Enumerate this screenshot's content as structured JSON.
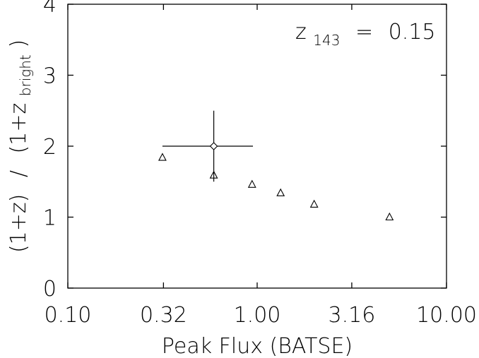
{
  "chart_data": {
    "type": "scatter",
    "title": "",
    "xlabel": "Peak Flux (BATSE)",
    "ylabel_parts": {
      "numerator": "(1+z)",
      "separator": "/",
      "denominator_prefix": "(1+z",
      "denominator_subscript": "bright",
      "denominator_suffix": ")"
    },
    "x_scale": "log10",
    "xlim": [
      0.1,
      10.0
    ],
    "ylim": [
      0,
      4
    ],
    "x_ticks": [
      0.1,
      0.32,
      1.0,
      3.16,
      10.0
    ],
    "x_tick_labels": [
      "0.10",
      "0.32",
      "1.00",
      "3.16",
      "10.00"
    ],
    "y_ticks": [
      0,
      1,
      2,
      3,
      4
    ],
    "y_tick_labels": [
      "0",
      "1",
      "2",
      "3",
      "4"
    ],
    "grid": false,
    "annotation": {
      "prefix": "z",
      "subscript": "143",
      "relation": "=",
      "value": "0.15"
    },
    "series": [
      {
        "marker": "triangle",
        "points": [
          {
            "x": 0.316,
            "y": 1.84
          },
          {
            "x": 0.59,
            "y": 1.59
          },
          {
            "x": 0.94,
            "y": 1.46
          },
          {
            "x": 1.33,
            "y": 1.34
          },
          {
            "x": 2.0,
            "y": 1.18
          },
          {
            "x": 5.0,
            "y": 1.0
          }
        ]
      },
      {
        "marker": "diamond",
        "points": [
          {
            "x": 0.59,
            "y": 2.0,
            "x_err": [
              0.316,
              0.95
            ],
            "y_err": [
              1.5,
              2.5
            ]
          }
        ]
      }
    ]
  }
}
